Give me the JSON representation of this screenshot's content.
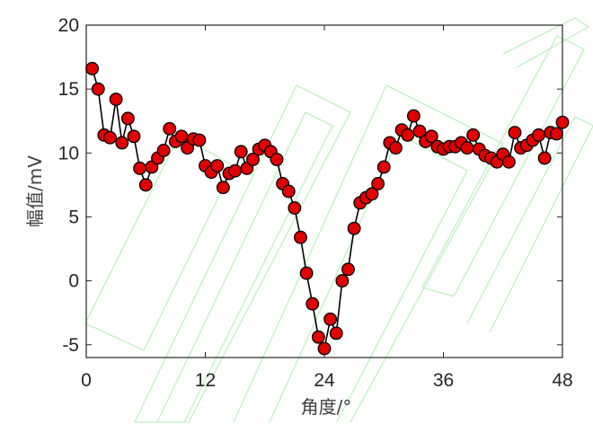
{
  "chart_data": {
    "type": "line",
    "xlabel": "角度/°",
    "ylabel": "幅值/mV",
    "xlim": [
      0,
      48
    ],
    "ylim": [
      -6,
      20
    ],
    "xticks": [
      0,
      12,
      24,
      36,
      48
    ],
    "yticks": [
      -5,
      0,
      5,
      10,
      15,
      20
    ],
    "grid": false,
    "marker": "circle",
    "marker_color": "#e00000",
    "line_color": "#000000",
    "series": [
      {
        "x": [
          0.6,
          1.2,
          1.8,
          2.4,
          3.0,
          3.6,
          4.2,
          4.8,
          5.4,
          6.0,
          6.6,
          7.2,
          7.8,
          8.4,
          9.0,
          9.6,
          10.2,
          10.8,
          11.4,
          12.0,
          12.6,
          13.2,
          13.8,
          14.4,
          15.0,
          15.6,
          16.2,
          16.8,
          17.4,
          18.0,
          18.6,
          19.2,
          19.8,
          20.4,
          21.0,
          21.6,
          22.2,
          22.8,
          23.4,
          24.0,
          24.6,
          25.2,
          25.8,
          26.4,
          27.0,
          27.6,
          28.2,
          28.8,
          29.4,
          30.0,
          30.6,
          31.2,
          31.8,
          32.4,
          33.0,
          33.6,
          34.2,
          34.8,
          35.4,
          36.0,
          36.6,
          37.2,
          37.8,
          38.4,
          39.0,
          39.6,
          40.2,
          40.8,
          41.4,
          42.0,
          42.6,
          43.2,
          43.8,
          44.4,
          45.0,
          45.6,
          46.2,
          46.8,
          47.4,
          48.0
        ],
        "y": [
          16.6,
          15.0,
          11.4,
          11.2,
          14.2,
          10.8,
          12.7,
          11.3,
          8.8,
          7.5,
          8.9,
          9.6,
          10.2,
          11.9,
          10.9,
          11.3,
          10.4,
          11.1,
          11.0,
          9.0,
          8.5,
          9.0,
          7.3,
          8.4,
          8.6,
          10.1,
          8.8,
          9.5,
          10.3,
          10.6,
          10.1,
          9.5,
          7.6,
          7.0,
          5.7,
          3.4,
          0.6,
          -1.8,
          -4.4,
          -5.3,
          -3.0,
          -4.1,
          0.0,
          0.9,
          4.1,
          6.1,
          6.5,
          6.8,
          7.6,
          8.9,
          10.8,
          10.4,
          11.8,
          11.4,
          12.9,
          11.7,
          10.9,
          11.3,
          10.5,
          10.3,
          10.5,
          10.5,
          10.8,
          10.4,
          11.4,
          10.3,
          9.8,
          9.6,
          9.3,
          9.9,
          9.3,
          11.6,
          10.4,
          10.6,
          11.0,
          11.4,
          9.6,
          11.6,
          11.5,
          12.4
        ]
      }
    ]
  }
}
